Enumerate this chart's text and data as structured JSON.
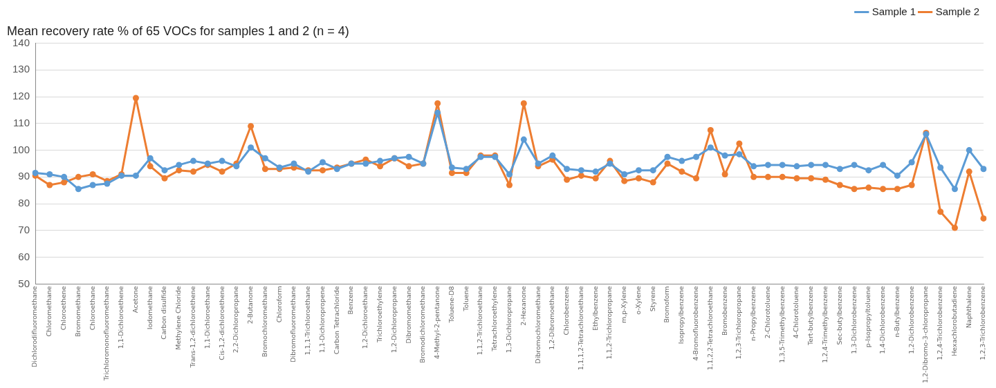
{
  "chart_data": {
    "type": "line",
    "title": "Mean recovery rate % of 65 VOCs for samples 1 and 2 (n = 4)",
    "categories": [
      "Dichlorodifluoromethane",
      "Chloromethane",
      "Chloroethene",
      "Bromomethane",
      "Chloroethane",
      "Trichloromonofluoromethane",
      "1,1-Dichloroethene",
      "Acetone",
      "Iodomethane",
      "Carbon disulfide",
      "Methylene Chloride",
      "Trans-1,2-dichloroethene",
      "1,1-Dichloroethane",
      "Cis-1,2-dichloroethene",
      "2,2-Dichloropropane",
      "2-Butanone",
      "Bromochloromethane",
      "Chloroform",
      "Dibromofluoromethane",
      "1,1,1-Trichloroethane",
      "1,1-Dichloropropene",
      "Carbon Tetrachloride",
      "Benzene",
      "1,2-Dichloroethane",
      "Trichloroethylene",
      "1,2-Dichloropropane",
      "Dibromomethane",
      "Bromodichloromethane",
      "4-Methyl-2-pentanone",
      "Toluene-D8",
      "Toluene",
      "1,1,2-Trichloroethane",
      "Tetrachloroethylene",
      "1,3-Dichloropropane",
      "2-Hexanone",
      "Dibromochloromethane",
      "1,2-Dibromoethane",
      "Chlorobenzene",
      "1,1,1,2-Tetrachloroethane",
      "Ethylbenzene",
      "1,1,2-Trichloropropane",
      "m,p-Xylene",
      "o-Xylene",
      "Styrene",
      "Bromoform",
      "Isopropylbenzene",
      "4-Bromofluorobenzene",
      "1,1,2,2-Tetrachloroethane",
      "Bromobenzene",
      "1,2,3-Trichloropropane",
      "n-Propylbenzene",
      "2-Chlorotoluene",
      "1,3,5-Trimethylbenzene",
      "4-Chlorotoluene",
      "Tert-butylbenzene",
      "1,2,4-Trimethylbenzene",
      "Sec-butylbenzene",
      "1,3-Dichlorobenzene",
      "p-Isopropyltoluene",
      "1,4-Dichlorobenzene",
      "n-Butylbenzene",
      "1,2-Dichlorobenzene",
      "1,2-Dibromo-3-chloropropane",
      "1,2,4-Trichlorobenzene",
      "Hexachlorobutadiene",
      "Naphthalene",
      "1,2,3-Trichlorobenzene"
    ],
    "series": [
      {
        "name": "Sample 1",
        "color": "#5b9bd5",
        "values": [
          91.5,
          91,
          90,
          85.5,
          87,
          87.5,
          90.5,
          90.5,
          97,
          92.5,
          94.5,
          96,
          95,
          96,
          94,
          101,
          97,
          93.5,
          95,
          92,
          95.5,
          93,
          95,
          95,
          96,
          97,
          97.5,
          95,
          114,
          93.5,
          93,
          97.5,
          97.5,
          91,
          104,
          95,
          98,
          93,
          92.5,
          92,
          95,
          91,
          92.5,
          92.5,
          97.5,
          96,
          97.5,
          101,
          98,
          98.5,
          94,
          94.5,
          94.5,
          94,
          94.5,
          94.5,
          93,
          94.5,
          92.5,
          94.5,
          90.5,
          95.5,
          106,
          93.5,
          85.5,
          100,
          93
        ]
      },
      {
        "name": "Sample 2",
        "color": "#ed7d31",
        "values": [
          90.5,
          87,
          88,
          90,
          91,
          88.5,
          91,
          119.5,
          94,
          89.5,
          92.5,
          92,
          94.5,
          92,
          95,
          109,
          93,
          93,
          93.5,
          92.5,
          92.5,
          93.5,
          95,
          96.5,
          94,
          97,
          94,
          95,
          117.5,
          91.5,
          91.5,
          98,
          98,
          87,
          117.5,
          94,
          96.5,
          89,
          90.5,
          89.5,
          96,
          88.5,
          89.5,
          88,
          95,
          92,
          89.5,
          107.5,
          91,
          102.5,
          90,
          90,
          90,
          89.5,
          89.5,
          89,
          87,
          85.5,
          86,
          85.5,
          85.5,
          87,
          106.5,
          77,
          71,
          92,
          74.5
        ]
      }
    ],
    "ylim": [
      50,
      140
    ],
    "yticks": [
      50,
      60,
      70,
      80,
      90,
      100,
      110,
      120,
      130,
      140
    ],
    "grid": "y",
    "legend": "top right",
    "marker": "circle",
    "line_style": "solid"
  }
}
